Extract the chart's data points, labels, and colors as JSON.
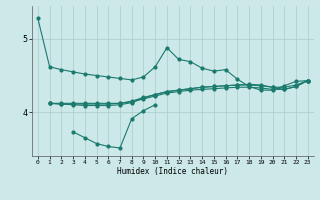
{
  "xlabel": "Humidex (Indice chaleur)",
  "x": [
    0,
    1,
    2,
    3,
    4,
    5,
    6,
    7,
    8,
    9,
    10,
    11,
    12,
    13,
    14,
    15,
    16,
    17,
    18,
    19,
    20,
    21,
    22,
    23
  ],
  "line1": [
    5.28,
    4.62,
    4.58,
    4.55,
    4.52,
    4.5,
    4.48,
    4.46,
    4.44,
    4.48,
    4.62,
    4.88,
    4.72,
    4.69,
    4.6,
    4.56,
    4.58,
    4.45,
    4.35,
    4.3,
    4.3,
    4.36,
    4.42,
    4.43
  ],
  "line2": [
    null,
    null,
    null,
    3.73,
    3.65,
    3.57,
    3.53,
    3.51,
    3.91,
    4.02,
    4.1,
    null,
    null,
    null,
    null,
    null,
    null,
    null,
    null,
    null,
    null,
    null,
    null,
    null
  ],
  "line4": [
    null,
    4.12,
    4.11,
    4.11,
    4.11,
    4.11,
    4.11,
    4.12,
    4.15,
    4.2,
    4.24,
    4.28,
    4.3,
    4.32,
    4.34,
    4.35,
    4.36,
    4.37,
    4.37,
    4.36,
    4.34,
    4.34,
    4.37,
    4.43
  ],
  "line5": [
    null,
    4.12,
    4.12,
    4.12,
    4.12,
    4.12,
    4.12,
    4.12,
    4.14,
    4.18,
    4.22,
    4.26,
    4.28,
    4.3,
    4.31,
    4.32,
    4.33,
    4.34,
    4.34,
    4.33,
    4.31,
    4.31,
    4.35,
    4.43
  ],
  "line6": [
    null,
    4.12,
    4.11,
    4.1,
    4.09,
    4.09,
    4.09,
    4.1,
    4.13,
    4.19,
    4.24,
    4.28,
    4.3,
    4.32,
    4.34,
    4.35,
    4.36,
    4.37,
    4.38,
    4.37,
    4.34,
    4.31,
    4.35,
    4.43
  ],
  "line_color": "#1a7a6e",
  "bg_color": "#cce8e8",
  "grid_color": "#aacccc",
  "ylim": [
    3.4,
    5.45
  ],
  "yticks": [
    4,
    5
  ],
  "xlim": [
    -0.5,
    23.5
  ]
}
